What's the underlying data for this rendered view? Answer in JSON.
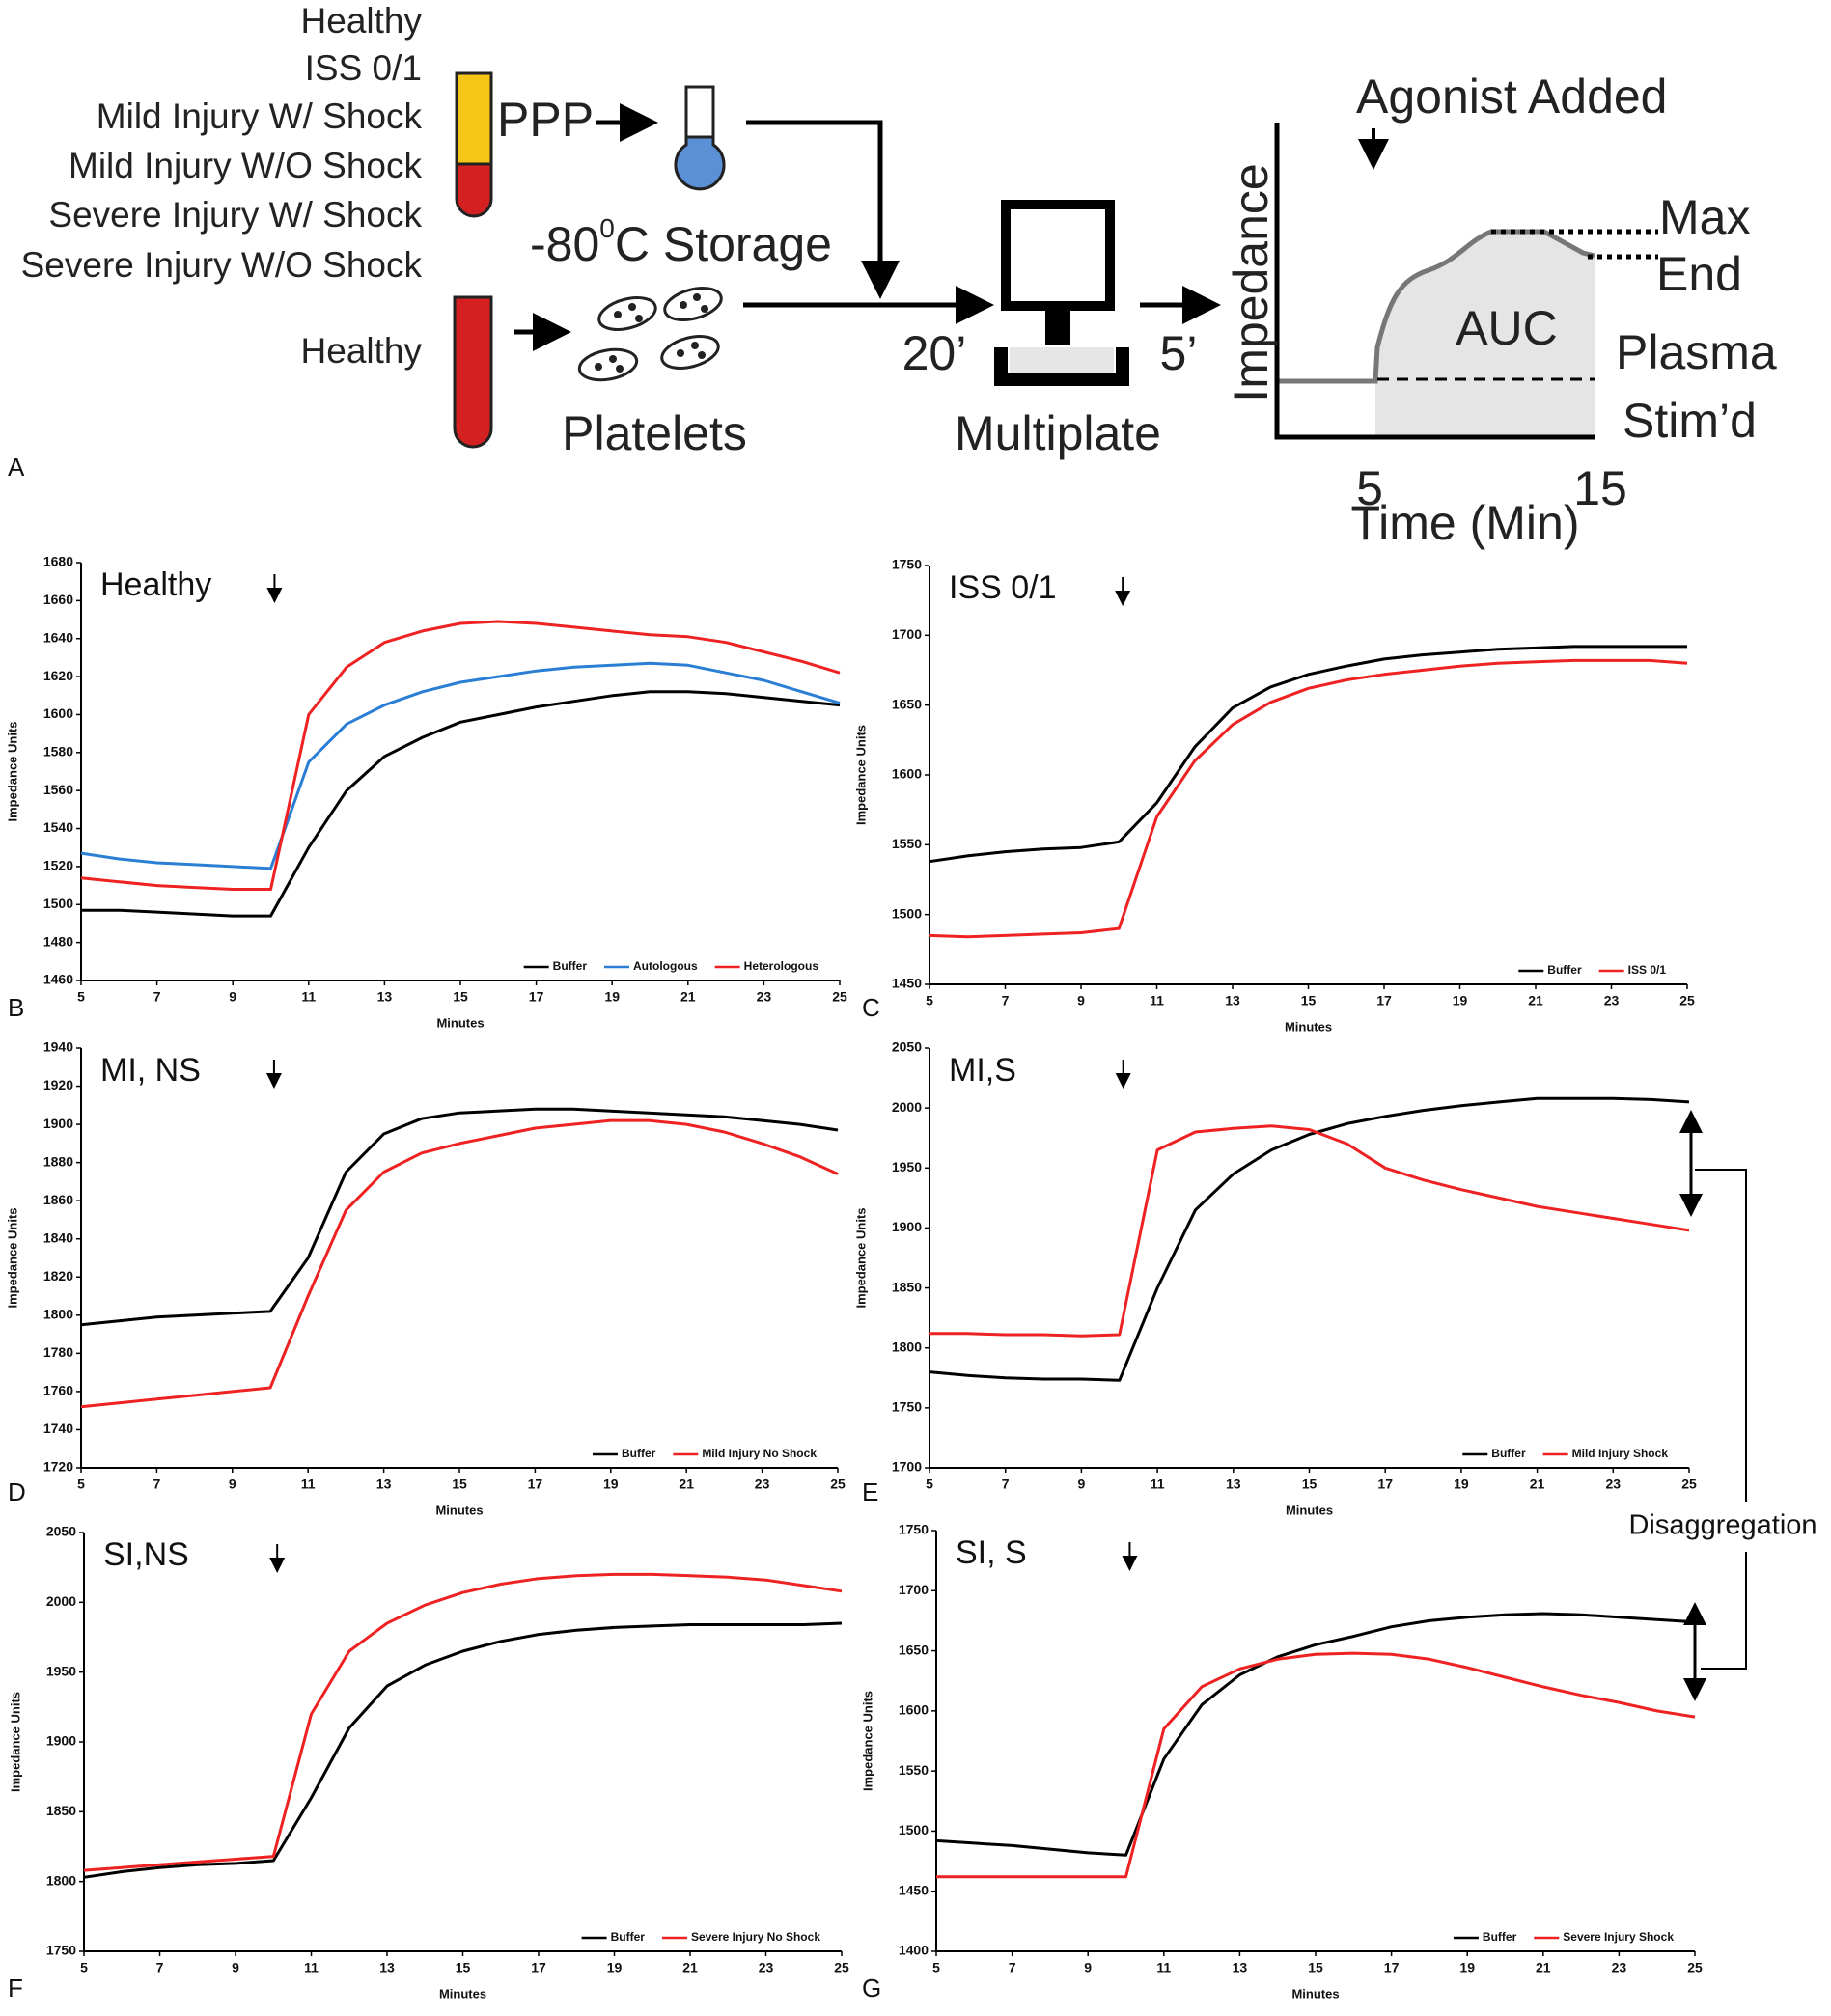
{
  "diagram": {
    "panel_label": "A",
    "groups": [
      "Healthy",
      "ISS 0/1",
      "Mild Injury W/ Shock",
      "Mild Injury W/O Shock",
      "Severe Injury W/ Shock",
      "Severe Injury W/O Shock"
    ],
    "donor": "Healthy",
    "ppp": "PPP",
    "storage": {
      "temp": "-80",
      "sup": "0",
      "rest": "C Storage"
    },
    "platelets": "Platelets",
    "time_before": "20’",
    "time_after": "5’",
    "device": "Multiplate",
    "agonist": "Agonist Added",
    "y_label": "Impedance",
    "auc": "AUC",
    "max": "Max",
    "end": "End",
    "plasma": "Plasma",
    "stimd": "Stim’d",
    "x_start": "5",
    "x_end": "15",
    "x_label": "Time (Min)"
  },
  "annotation": "Disaggregation",
  "chart_data": [
    {
      "type": "line",
      "panel_label": "B",
      "title": "Healthy",
      "x_label": "Minutes",
      "y_label": "Impedance Units",
      "legend": "lower right",
      "x": [
        5,
        6,
        7,
        8,
        9,
        10,
        11,
        12,
        13,
        14,
        15,
        16,
        17,
        18,
        19,
        20,
        21,
        22,
        23,
        24,
        25
      ],
      "xlim": [
        5,
        25
      ],
      "xticks": [
        5,
        7,
        9,
        11,
        13,
        15,
        17,
        19,
        21,
        23,
        25
      ],
      "ylim": [
        1460,
        1680
      ],
      "yticks": [
        1460,
        1480,
        1500,
        1520,
        1540,
        1560,
        1580,
        1600,
        1620,
        1640,
        1660,
        1680
      ],
      "series": [
        {
          "name": "Buffer",
          "color": "#000000",
          "values": [
            1497,
            1497,
            1496,
            1495,
            1494,
            1494,
            1530,
            1560,
            1578,
            1588,
            1596,
            1600,
            1604,
            1607,
            1610,
            1612,
            1612,
            1611,
            1609,
            1607,
            1605
          ]
        },
        {
          "name": "Autologous",
          "color": "#2a7fd4",
          "values": [
            1527,
            1524,
            1522,
            1521,
            1520,
            1519,
            1575,
            1595,
            1605,
            1612,
            1617,
            1620,
            1623,
            1625,
            1626,
            1627,
            1626,
            1622,
            1618,
            1612,
            1606
          ]
        },
        {
          "name": "Heterologous",
          "color": "#ee2222",
          "values": [
            1514,
            1512,
            1510,
            1509,
            1508,
            1508,
            1600,
            1625,
            1638,
            1644,
            1648,
            1649,
            1648,
            1646,
            1644,
            1642,
            1641,
            1638,
            1633,
            1628,
            1622
          ]
        }
      ]
    },
    {
      "type": "line",
      "panel_label": "C",
      "title": "ISS 0/1",
      "x_label": "Minutes",
      "y_label": "Impedance Units",
      "legend": "lower right",
      "x": [
        5,
        6,
        7,
        8,
        9,
        10,
        11,
        12,
        13,
        14,
        15,
        16,
        17,
        18,
        19,
        20,
        21,
        22,
        23,
        24,
        25
      ],
      "xlim": [
        5,
        25
      ],
      "xticks": [
        5,
        7,
        9,
        11,
        13,
        15,
        17,
        19,
        21,
        23,
        25
      ],
      "ylim": [
        1450,
        1750
      ],
      "yticks": [
        1450,
        1500,
        1550,
        1600,
        1650,
        1700,
        1750
      ],
      "series": [
        {
          "name": "Buffer",
          "color": "#000000",
          "values": [
            1538,
            1542,
            1545,
            1547,
            1548,
            1552,
            1580,
            1620,
            1648,
            1663,
            1672,
            1678,
            1683,
            1686,
            1688,
            1690,
            1691,
            1692,
            1692,
            1692,
            1692
          ]
        },
        {
          "name": "ISS 0/1",
          "color": "#ee2222",
          "values": [
            1485,
            1484,
            1485,
            1486,
            1487,
            1490,
            1570,
            1610,
            1636,
            1652,
            1662,
            1668,
            1672,
            1675,
            1678,
            1680,
            1681,
            1682,
            1682,
            1682,
            1680
          ]
        }
      ]
    },
    {
      "type": "line",
      "panel_label": "D",
      "title": "MI, NS",
      "x_label": "Minutes",
      "y_label": "Impedance Units",
      "legend": "lower right",
      "x": [
        5,
        6,
        7,
        8,
        9,
        10,
        11,
        12,
        13,
        14,
        15,
        16,
        17,
        18,
        19,
        20,
        21,
        22,
        23,
        24,
        25
      ],
      "xlim": [
        5,
        25
      ],
      "xticks": [
        5,
        7,
        9,
        11,
        13,
        15,
        17,
        19,
        21,
        23,
        25
      ],
      "ylim": [
        1720,
        1940
      ],
      "yticks": [
        1720,
        1740,
        1760,
        1780,
        1800,
        1820,
        1840,
        1860,
        1880,
        1900,
        1920,
        1940
      ],
      "series": [
        {
          "name": "Buffer",
          "color": "#000000",
          "values": [
            1795,
            1797,
            1799,
            1800,
            1801,
            1802,
            1830,
            1875,
            1895,
            1903,
            1906,
            1907,
            1908,
            1908,
            1907,
            1906,
            1905,
            1904,
            1902,
            1900,
            1897
          ]
        },
        {
          "name": "Mild Injury No Shock",
          "color": "#ee2222",
          "values": [
            1752,
            1754,
            1756,
            1758,
            1760,
            1762,
            1810,
            1855,
            1875,
            1885,
            1890,
            1894,
            1898,
            1900,
            1902,
            1902,
            1900,
            1896,
            1890,
            1883,
            1874
          ]
        }
      ]
    },
    {
      "type": "line",
      "panel_label": "E",
      "title": "MI,S",
      "x_label": "Minutes",
      "y_label": "Impedance Units",
      "legend": "lower right",
      "x": [
        5,
        6,
        7,
        8,
        9,
        10,
        11,
        12,
        13,
        14,
        15,
        16,
        17,
        18,
        19,
        20,
        21,
        22,
        23,
        24,
        25
      ],
      "xlim": [
        5,
        25
      ],
      "xticks": [
        5,
        7,
        9,
        11,
        13,
        15,
        17,
        19,
        21,
        23,
        25
      ],
      "ylim": [
        1700,
        2050
      ],
      "yticks": [
        1700,
        1750,
        1800,
        1850,
        1900,
        1950,
        2000,
        2050
      ],
      "series": [
        {
          "name": "Buffer",
          "color": "#000000",
          "values": [
            1780,
            1777,
            1775,
            1774,
            1774,
            1773,
            1850,
            1915,
            1945,
            1965,
            1978,
            1987,
            1993,
            1998,
            2002,
            2005,
            2008,
            2008,
            2008,
            2007,
            2005
          ]
        },
        {
          "name": "Mild Injury Shock",
          "color": "#ee2222",
          "values": [
            1812,
            1812,
            1811,
            1811,
            1810,
            1811,
            1965,
            1980,
            1983,
            1985,
            1982,
            1970,
            1950,
            1940,
            1932,
            1925,
            1918,
            1913,
            1908,
            1903,
            1898
          ]
        }
      ]
    },
    {
      "type": "line",
      "panel_label": "F",
      "title": "SI,NS",
      "x_label": "Minutes",
      "y_label": "Impedance Units",
      "legend": "lower right",
      "x": [
        5,
        6,
        7,
        8,
        9,
        10,
        11,
        12,
        13,
        14,
        15,
        16,
        17,
        18,
        19,
        20,
        21,
        22,
        23,
        24,
        25
      ],
      "xlim": [
        5,
        25
      ],
      "xticks": [
        5,
        7,
        9,
        11,
        13,
        15,
        17,
        19,
        21,
        23,
        25
      ],
      "ylim": [
        1750,
        2050
      ],
      "yticks": [
        1750,
        1800,
        1850,
        1900,
        1950,
        2000,
        2050
      ],
      "series": [
        {
          "name": "Buffer",
          "color": "#000000",
          "values": [
            1803,
            1807,
            1810,
            1812,
            1813,
            1815,
            1860,
            1910,
            1940,
            1955,
            1965,
            1972,
            1977,
            1980,
            1982,
            1983,
            1984,
            1984,
            1984,
            1984,
            1985
          ]
        },
        {
          "name": "Severe Injury No Shock",
          "color": "#ee2222",
          "values": [
            1808,
            1810,
            1812,
            1814,
            1816,
            1818,
            1920,
            1965,
            1985,
            1998,
            2007,
            2013,
            2017,
            2019,
            2020,
            2020,
            2019,
            2018,
            2016,
            2012,
            2008
          ]
        }
      ]
    },
    {
      "type": "line",
      "panel_label": "G",
      "title": "SI, S",
      "x_label": "Minutes",
      "y_label": "Impedance Units",
      "legend": "lower right",
      "x": [
        5,
        6,
        7,
        8,
        9,
        10,
        11,
        12,
        13,
        14,
        15,
        16,
        17,
        18,
        19,
        20,
        21,
        22,
        23,
        24,
        25
      ],
      "xlim": [
        5,
        25
      ],
      "xticks": [
        5,
        7,
        9,
        11,
        13,
        15,
        17,
        19,
        21,
        23,
        25
      ],
      "ylim": [
        1400,
        1750
      ],
      "yticks": [
        1400,
        1450,
        1500,
        1550,
        1600,
        1650,
        1700,
        1750
      ],
      "series": [
        {
          "name": "Buffer",
          "color": "#000000",
          "values": [
            1492,
            1490,
            1488,
            1485,
            1482,
            1480,
            1560,
            1605,
            1630,
            1645,
            1655,
            1662,
            1670,
            1675,
            1678,
            1680,
            1681,
            1680,
            1678,
            1676,
            1674
          ]
        },
        {
          "name": "Severe Injury Shock",
          "color": "#ee2222",
          "values": [
            1462,
            1462,
            1462,
            1462,
            1462,
            1462,
            1585,
            1620,
            1635,
            1643,
            1647,
            1648,
            1647,
            1643,
            1636,
            1628,
            1620,
            1613,
            1607,
            1600,
            1595
          ]
        }
      ]
    }
  ]
}
